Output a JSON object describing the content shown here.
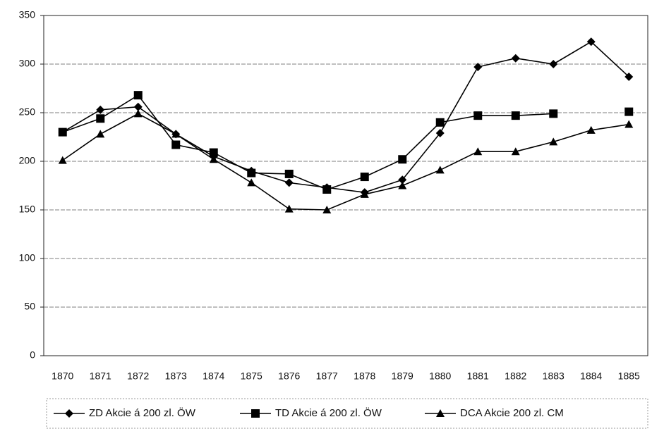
{
  "chart_data": {
    "type": "line",
    "categories": [
      "1870",
      "1871",
      "1872",
      "1873",
      "1874",
      "1875",
      "1876",
      "1877",
      "1878",
      "1879",
      "1880",
      "1881",
      "1882",
      "1883",
      "1884",
      "1885"
    ],
    "series": [
      {
        "name": "ZD Akcie á 200 zl. ÖW",
        "color": "#000000",
        "marker": "diamond",
        "values": [
          230,
          253,
          256,
          228,
          205,
          190,
          178,
          173,
          168,
          181,
          229,
          297,
          306,
          300,
          323,
          287
        ]
      },
      {
        "name": "TD Akcie á 200 zl. ÖW",
        "color": "#000000",
        "marker": "square",
        "values": [
          230,
          244,
          268,
          217,
          209,
          188,
          187,
          171,
          184,
          202,
          240,
          247,
          247,
          249,
          null,
          251
        ]
      },
      {
        "name": "DCA Akcie 200 zl. CM",
        "color": "#000000",
        "marker": "triangle",
        "values": [
          201,
          228,
          249,
          228,
          202,
          178,
          151,
          150,
          166,
          175,
          191,
          210,
          210,
          220,
          232,
          238
        ]
      }
    ],
    "ylim": [
      0,
      350
    ],
    "yticks": [
      0,
      50,
      100,
      150,
      200,
      250,
      300,
      350
    ],
    "grid": true,
    "legend": "bottom"
  }
}
